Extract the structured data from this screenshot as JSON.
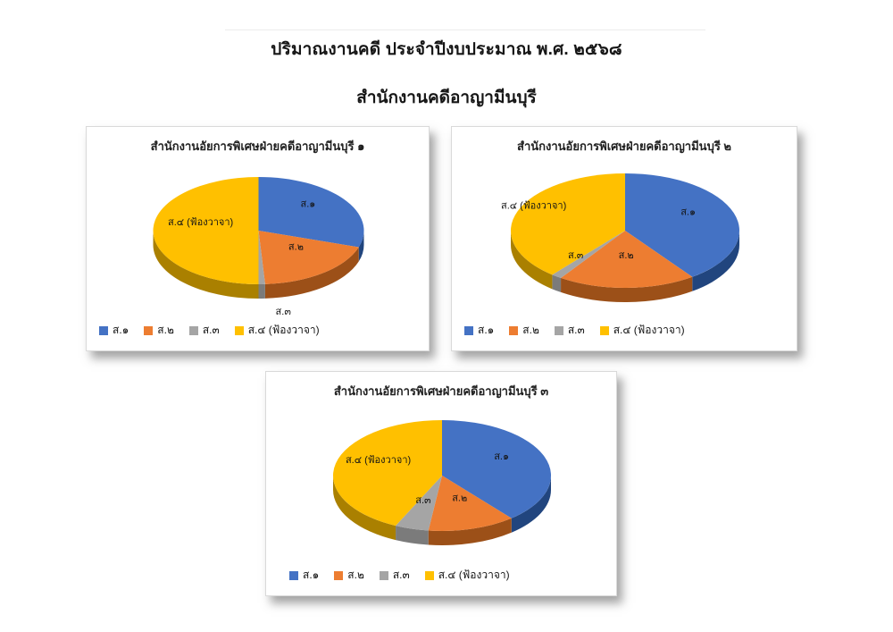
{
  "page": {
    "title": "ปริมาณงานคดี ประจำปีงบประมาณ พ.ศ. ๒๕๖๘",
    "subtitle": "สำนักงานคดีอาญามีนบุรี"
  },
  "palette": {
    "series": [
      {
        "name": "ส.๑",
        "top": "#4472C4",
        "side": "#21457e"
      },
      {
        "name": "ส.๒",
        "top": "#ED7D31",
        "side": "#9c5018"
      },
      {
        "name": "ส.๓",
        "top": "#A5A5A5",
        "side": "#7b7b7b"
      },
      {
        "name": "ส.๔ (ฟ้องวาจา)",
        "top": "#FFC000",
        "side": "#aa8000"
      }
    ]
  },
  "chart_data": [
    {
      "type": "pie",
      "style": "3d",
      "title": "สำนักงานอัยการพิเศษฝ่ายคดีอาญามีนบุรี ๑",
      "categories": [
        "ส.๑",
        "ส.๒",
        "ส.๓",
        "ส.๔ (ฟ้องวาจา)"
      ],
      "values_pct_est": [
        30,
        19,
        1,
        50
      ],
      "data_labels": "category-names-on-slices",
      "legend_position": "bottom"
    },
    {
      "type": "pie",
      "style": "3d",
      "title": "สำนักงานอัยการพิเศษฝ่ายคดีอาญามีนบุรี ๒",
      "categories": [
        "ส.๑",
        "ส.๒",
        "ส.๓",
        "ส.๔ (ฟ้องวาจา)"
      ],
      "values_pct_est": [
        40,
        19.5,
        1.5,
        39
      ],
      "data_labels": "category-names-on-slices",
      "legend_position": "bottom"
    },
    {
      "type": "pie",
      "style": "3d",
      "title": "สำนักงานอัยการพิเศษฝ่ายคดีอาญามีนบุรี ๓",
      "categories": [
        "ส.๑",
        "ส.๒",
        "ส.๓",
        "ส.๔ (ฟ้องวาจา)"
      ],
      "values_pct_est": [
        39,
        13,
        5,
        43
      ],
      "data_labels": "category-names-on-slices",
      "legend_position": "bottom"
    }
  ]
}
